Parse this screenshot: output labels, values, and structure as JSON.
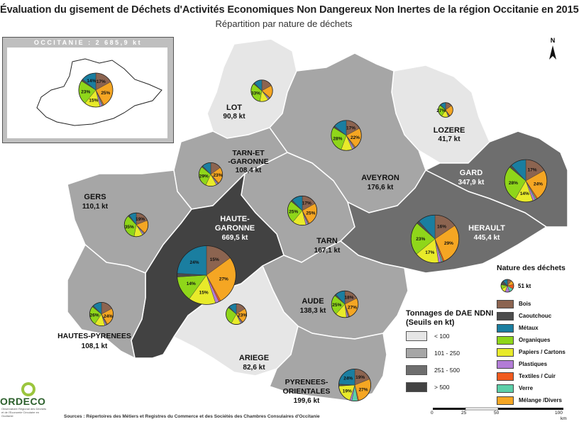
{
  "title": "Évaluation du gisement de Déchets d'Activités Economiques Non Dangereux Non Inertes de la région Occitanie en 2015",
  "subtitle": "Répartition par nature de déchets",
  "inset": {
    "title": "OCCITANIE : 2 685,9 kt"
  },
  "legend_tonnage": {
    "title": "Tonnages de DAE NDNI (Seuils en kt)",
    "classes": [
      {
        "label": "< 100",
        "color": "#e6e6e6"
      },
      {
        "label": "101 - 250",
        "color": "#a6a6a6"
      },
      {
        "label": "251 - 500",
        "color": "#6e6e6e"
      },
      {
        "label": "> 500",
        "color": "#424242"
      }
    ]
  },
  "legend_nature": {
    "title": "Nature des déchets",
    "pie_label": "51 kt",
    "categories": [
      {
        "label": "Bois",
        "color": "#8c6450"
      },
      {
        "label": "Caoutchouc",
        "color": "#4c4c4c"
      },
      {
        "label": "Métaux",
        "color": "#1a7ea0"
      },
      {
        "label": "Organiques",
        "color": "#8fd61a"
      },
      {
        "label": "Papiers / Cartons",
        "color": "#e8ea2a"
      },
      {
        "label": "Plastiques",
        "color": "#b27cd6"
      },
      {
        "label": "Textiles / Cuir",
        "color": "#f05a1e"
      },
      {
        "label": "Verre",
        "color": "#5ccfa8"
      },
      {
        "label": "Mélange /Divers",
        "color": "#f5a623"
      }
    ]
  },
  "departments": [
    {
      "name": "LOT",
      "tonnage": "90,8 kt",
      "value_kt": 90.8,
      "class": 0,
      "pie": {
        "Bois": 17,
        "Caoutchouc": 2,
        "Métaux": 12,
        "Organiques": 33,
        "Papiers / Cartons": 13,
        "Plastiques": 2,
        "Textiles / Cuir": 1,
        "Verre": 1,
        "Mélange /Divers": 19
      },
      "labels": [
        "33%"
      ]
    },
    {
      "name": "LOZERE",
      "tonnage": "41,7 kt",
      "value_kt": 41.7,
      "class": 0,
      "pie": {
        "Bois": 15,
        "Caoutchouc": 2,
        "Métaux": 12,
        "Organiques": 27,
        "Papiers / Cartons": 15,
        "Plastiques": 2,
        "Textiles / Cuir": 1,
        "Verre": 1,
        "Mélange /Divers": 25
      },
      "labels": [
        "27%"
      ]
    },
    {
      "name": "TARN-ET-GARONNE",
      "tonnage": "108,4 kt",
      "value_kt": 108.4,
      "class": 1,
      "pie": {
        "Bois": 15,
        "Caoutchouc": 2,
        "Métaux": 12,
        "Organiques": 29,
        "Papiers / Cartons": 15,
        "Plastiques": 2,
        "Textiles / Cuir": 1,
        "Verre": 1,
        "Mélange /Divers": 23
      },
      "labels": [
        "29%",
        "23%"
      ]
    },
    {
      "name": "AVEYRON",
      "tonnage": "176,6 kt",
      "value_kt": 176.6,
      "class": 1,
      "pie": {
        "Bois": 17,
        "Caoutchouc": 2,
        "Métaux": 14,
        "Organiques": 28,
        "Papiers / Cartons": 12,
        "Plastiques": 2,
        "Textiles / Cuir": 1,
        "Verre": 1,
        "Mélange /Divers": 22
      },
      "labels": [
        "28%",
        "17%",
        "22%"
      ]
    },
    {
      "name": "GARD",
      "tonnage": "347,9 kt",
      "value_kt": 347.9,
      "class": 2,
      "pie": {
        "Bois": 17,
        "Caoutchouc": 2,
        "Métaux": 12,
        "Organiques": 28,
        "Papiers / Cartons": 14,
        "Plastiques": 2,
        "Textiles / Cuir": 1,
        "Verre": 1,
        "Mélange /Divers": 24
      },
      "labels": [
        "28%",
        "17%",
        "14%",
        "24%"
      ]
    },
    {
      "name": "GERS",
      "tonnage": "110,1 kt",
      "value_kt": 110.1,
      "class": 1,
      "pie": {
        "Bois": 19,
        "Caoutchouc": 2,
        "Métaux": 10,
        "Organiques": 35,
        "Papiers / Cartons": 12,
        "Plastiques": 2,
        "Textiles / Cuir": 1,
        "Verre": 1,
        "Mélange /Divers": 18
      },
      "labels": [
        "35%",
        "19%"
      ]
    },
    {
      "name": "HAUTE-GARONNE",
      "tonnage": "669,5 kt",
      "value_kt": 669.5,
      "class": 3,
      "pie": {
        "Bois": 15,
        "Caoutchouc": 2,
        "Métaux": 24,
        "Organiques": 14,
        "Papiers / Cartons": 15,
        "Plastiques": 2,
        "Textiles / Cuir": 1,
        "Verre": 0,
        "Mélange /Divers": 27
      },
      "labels": [
        "24%",
        "15%",
        "14%",
        "15%",
        "27%"
      ]
    },
    {
      "name": "TARN",
      "tonnage": "167,1 kt",
      "value_kt": 167.1,
      "class": 1,
      "pie": {
        "Bois": 17,
        "Caoutchouc": 2,
        "Métaux": 12,
        "Organiques": 25,
        "Papiers / Cartons": 15,
        "Plastiques": 2,
        "Textiles / Cuir": 1,
        "Verre": 1,
        "Mélange /Divers": 25
      },
      "labels": [
        "25%",
        "17%",
        "25%"
      ]
    },
    {
      "name": "HERAULT",
      "tonnage": "445,4 kt",
      "value_kt": 445.4,
      "class": 2,
      "pie": {
        "Bois": 16,
        "Caoutchouc": 2,
        "Métaux": 12,
        "Organiques": 23,
        "Papiers / Cartons": 17,
        "Plastiques": 2,
        "Textiles / Cuir": 1,
        "Verre": 1,
        "Mélange /Divers": 29
      },
      "labels": [
        "23%",
        "16%",
        "17%",
        "29%"
      ]
    },
    {
      "name": "AUDE",
      "tonnage": "138,3 kt",
      "value_kt": 138.3,
      "class": 1,
      "pie": {
        "Bois": 18,
        "Caoutchouc": 2,
        "Métaux": 12,
        "Organiques": 25,
        "Papiers / Cartons": 14,
        "Plastiques": 2,
        "Textiles / Cuir": 1,
        "Verre": 1,
        "Mélange /Divers": 27
      },
      "labels": [
        "25%",
        "18%",
        "27%"
      ]
    },
    {
      "name": "HAUTES-PYRENEES",
      "tonnage": "108,1 kt",
      "value_kt": 108.1,
      "class": 1,
      "pie": {
        "Bois": 17,
        "Caoutchouc": 2,
        "Métaux": 12,
        "Organiques": 26,
        "Papiers / Cartons": 14,
        "Plastiques": 2,
        "Textiles / Cuir": 1,
        "Verre": 1,
        "Mélange /Divers": 24
      },
      "labels": [
        "26%",
        "24%"
      ]
    },
    {
      "name": "ARIEGE",
      "tonnage": "82,6 kt",
      "value_kt": 82.6,
      "class": 0,
      "pie": {
        "Bois": 16,
        "Caoutchouc": 2,
        "Métaux": 12,
        "Organiques": 28,
        "Papiers / Cartons": 15,
        "Plastiques": 2,
        "Textiles / Cuir": 1,
        "Verre": 1,
        "Mélange /Divers": 23
      },
      "labels": [
        "23%"
      ]
    },
    {
      "name": "PYRENEES-ORIENTALES",
      "tonnage": "199,6 kt",
      "value_kt": 199.6,
      "class": 1,
      "pie": {
        "Bois": 19,
        "Caoutchouc": 2,
        "Métaux": 24,
        "Organiques": 0,
        "Papiers / Cartons": 19,
        "Plastiques": 2,
        "Textiles / Cuir": 1,
        "Verre": 6,
        "Mélange /Divers": 27
      },
      "labels": [
        "24%",
        "19%",
        "19%",
        "27%"
      ]
    }
  ],
  "occitanie_pie": {
    "Bois": 17,
    "Caoutchouc": 2,
    "Métaux": 14,
    "Organiques": 23,
    "Papiers / Cartons": 15,
    "Plastiques": 2,
    "Textiles / Cuir": 1,
    "Verre": 1,
    "Mélange /Divers": 25,
    "labels": [
      "14%",
      "17%",
      "23%",
      "15%",
      "25%"
    ]
  },
  "logo": {
    "name": "ORDECO",
    "subtitle": "Observatoire Régional des Déchets et de l'Economie Circulaire en Occitanie"
  },
  "sources": "Sources : Répertoires des Métiers et Registres du Commerce et des Sociétés des Chambres Consulaires d'Occitanie",
  "scale": {
    "ticks": [
      "0",
      "25",
      "50",
      "100"
    ],
    "unit": "km"
  },
  "north_label": "N"
}
